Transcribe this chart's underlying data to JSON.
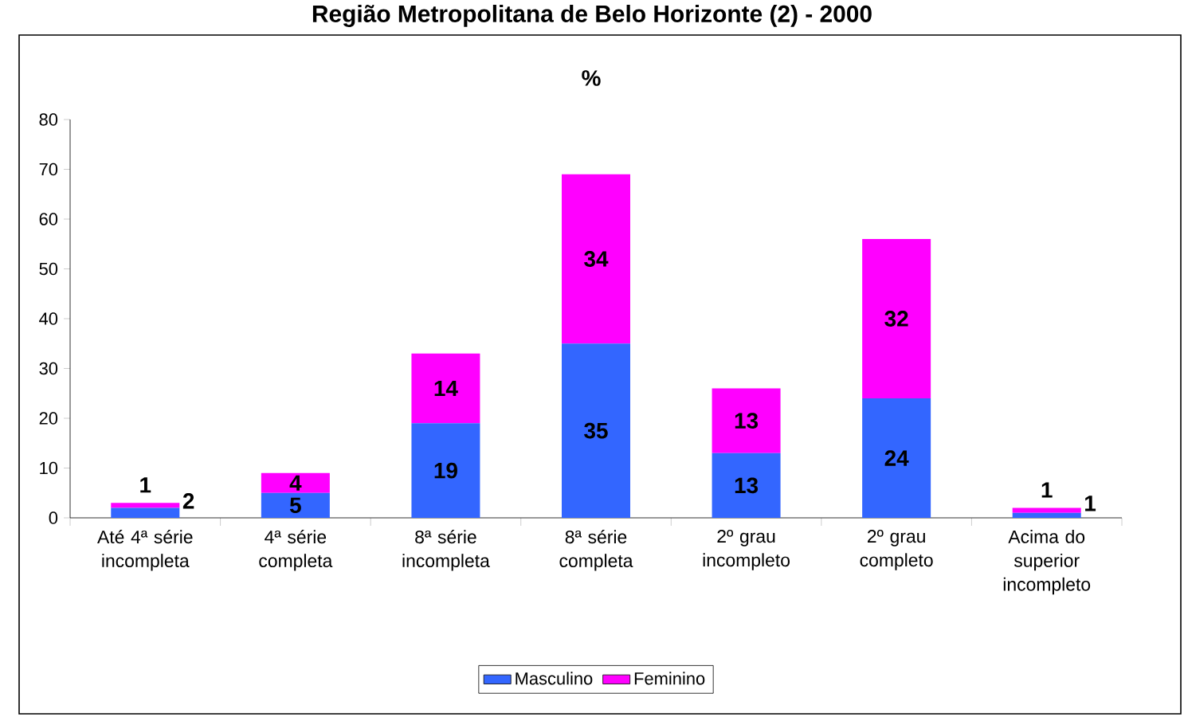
{
  "chart_data": {
    "type": "bar",
    "title": "Região Metropolitana de Belo Horizonte (2) - 2000",
    "subtitle": "%",
    "categories": [
      "Até 4ª série incompleta",
      "4ª série completa",
      "8ª série incompleta",
      "8ª série completa",
      "2º grau incompleto",
      "2º grau completo",
      "Acima do superior incompleto"
    ],
    "series": [
      {
        "name": "Masculino",
        "color": "#3366ff",
        "values": [
          2,
          5,
          19,
          35,
          13,
          24,
          1
        ]
      },
      {
        "name": "Feminino",
        "color": "#ff00ff",
        "values": [
          1,
          4,
          14,
          34,
          13,
          32,
          1
        ]
      }
    ],
    "stacked": true,
    "data_labels": true,
    "ylim": [
      0,
      80
    ],
    "yticks": [
      0,
      10,
      20,
      30,
      40,
      50,
      60,
      70,
      80
    ],
    "grid": false,
    "legend": "bottom"
  }
}
